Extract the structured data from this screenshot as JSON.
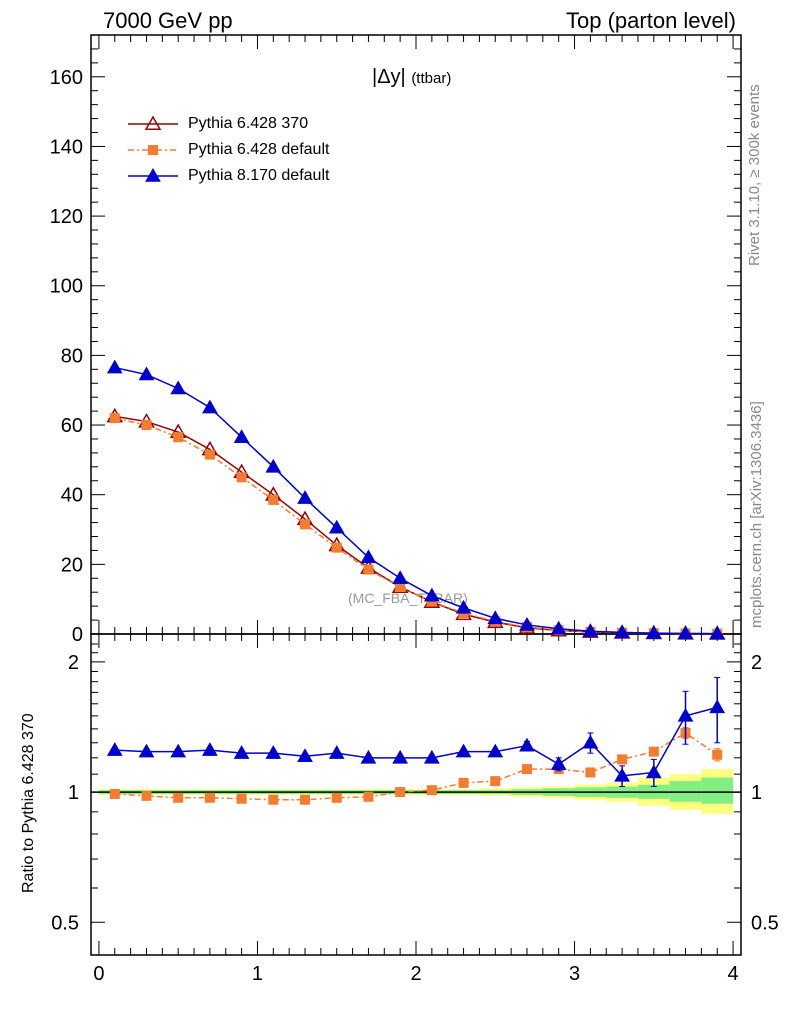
{
  "header": {
    "left": "7000 GeV pp",
    "right": "Top (parton level)"
  },
  "side_labels": {
    "rivet": "Rivet 3.1.10, ≥ 300k events",
    "mcplots": "mcplots.cern.ch [arXiv:1306.3436]"
  },
  "observable": {
    "main": "|Δy|",
    "sub": "(ttbar)"
  },
  "analysis_tag": "(MC_FBA_TTBAR)",
  "ratio_ylabel": "Ratio to Pythia 6.428 370",
  "colors": {
    "p6_370": "#990000",
    "p6_default": "#f47c30",
    "p8_default": "#0000cc",
    "band_inner": "#80ee80",
    "band_outer": "#ffff80",
    "ref_line": "#006600"
  },
  "chart_data": [
    {
      "type": "line",
      "panel": "main",
      "x": [
        0.1,
        0.3,
        0.5,
        0.7,
        0.9,
        1.1,
        1.3,
        1.5,
        1.7,
        1.9,
        2.1,
        2.3,
        2.5,
        2.7,
        2.9,
        3.1,
        3.3,
        3.5,
        3.7,
        3.9
      ],
      "xlim": [
        -0.05,
        4.05
      ],
      "ylim": [
        0,
        172
      ],
      "x_ticks": [
        "0",
        "1",
        "2",
        "3",
        "4"
      ],
      "y_ticks": [
        "0",
        "20",
        "40",
        "60",
        "80",
        "100",
        "120",
        "140",
        "160"
      ],
      "legend_position": "top-left",
      "series": [
        {
          "name": "Pythia 6.428 370",
          "marker": "open-triangle",
          "style": "solid",
          "values": [
            62.5,
            61.0,
            58.0,
            53.0,
            46.5,
            40.0,
            33.0,
            25.5,
            19.0,
            13.5,
            9.2,
            5.7,
            3.4,
            1.8,
            1.0,
            0.6,
            0.35,
            0.2,
            0.12,
            0.08
          ]
        },
        {
          "name": "Pythia 6.428 default",
          "marker": "filled-square",
          "style": "dash-dot",
          "values": [
            62.0,
            60.0,
            56.5,
            51.5,
            45.0,
            38.5,
            31.5,
            24.8,
            18.5,
            13.5,
            9.3,
            6.0,
            3.6,
            2.0,
            1.1,
            0.65,
            0.4,
            0.25,
            0.16,
            0.1
          ]
        },
        {
          "name": "Pythia 8.170 default",
          "marker": "filled-triangle",
          "style": "solid",
          "values": [
            76.5,
            74.5,
            70.5,
            65.0,
            56.5,
            48.0,
            39.0,
            30.5,
            22.0,
            16.0,
            11.0,
            7.5,
            4.5,
            2.6,
            1.5,
            0.8,
            0.45,
            0.25,
            0.15,
            0.1
          ]
        }
      ]
    },
    {
      "type": "line",
      "panel": "ratio",
      "log_y": true,
      "x": [
        0.1,
        0.3,
        0.5,
        0.7,
        0.9,
        1.1,
        1.3,
        1.5,
        1.7,
        1.9,
        2.1,
        2.3,
        2.5,
        2.7,
        2.9,
        3.1,
        3.3,
        3.5,
        3.7,
        3.9
      ],
      "xlim": [
        -0.05,
        4.05
      ],
      "ylim": [
        0.42,
        2.32
      ],
      "y_ticks": [
        "0.5",
        "1",
        "2"
      ],
      "ylabel": "Ratio to Pythia 6.428 370",
      "band_inner": [
        0.99,
        0.99,
        0.99,
        0.99,
        0.99,
        0.99,
        0.99,
        0.99,
        0.99,
        0.99,
        0.99,
        0.99,
        0.99,
        0.985,
        0.98,
        0.975,
        0.97,
        0.965,
        0.95,
        0.94
      ],
      "band_inner_hi": [
        1.01,
        1.01,
        1.01,
        1.01,
        1.01,
        1.01,
        1.01,
        1.01,
        1.01,
        1.01,
        1.01,
        1.01,
        1.01,
        1.015,
        1.02,
        1.025,
        1.03,
        1.04,
        1.06,
        1.08
      ],
      "band_outer": [
        0.985,
        0.985,
        0.985,
        0.985,
        0.985,
        0.985,
        0.985,
        0.985,
        0.985,
        0.985,
        0.985,
        0.985,
        0.98,
        0.975,
        0.97,
        0.96,
        0.95,
        0.93,
        0.91,
        0.89
      ],
      "band_outer_hi": [
        1.015,
        1.015,
        1.015,
        1.015,
        1.015,
        1.015,
        1.015,
        1.015,
        1.015,
        1.015,
        1.015,
        1.015,
        1.02,
        1.025,
        1.03,
        1.04,
        1.05,
        1.08,
        1.1,
        1.13
      ],
      "series": [
        {
          "name": "Pythia 6.428 default",
          "values": [
            0.99,
            0.98,
            0.97,
            0.97,
            0.965,
            0.96,
            0.96,
            0.97,
            0.975,
            1.0,
            1.01,
            1.05,
            1.06,
            1.13,
            1.13,
            1.11,
            1.19,
            1.24,
            1.37,
            1.22
          ],
          "err": [
            0,
            0,
            0,
            0,
            0,
            0,
            0,
            0,
            0,
            0,
            0,
            0,
            0,
            0,
            0,
            0,
            0,
            0.02,
            0.04,
            0.04
          ]
        },
        {
          "name": "Pythia 8.170 default",
          "values": [
            1.25,
            1.24,
            1.24,
            1.25,
            1.23,
            1.23,
            1.21,
            1.23,
            1.2,
            1.2,
            1.2,
            1.24,
            1.24,
            1.28,
            1.16,
            1.3,
            1.09,
            1.11,
            1.5,
            1.57
          ],
          "err": [
            0,
            0,
            0,
            0,
            0,
            0,
            0,
            0,
            0,
            0,
            0,
            0,
            0,
            0.03,
            0.04,
            0.07,
            0.06,
            0.08,
            0.21,
            0.27
          ]
        }
      ]
    }
  ]
}
